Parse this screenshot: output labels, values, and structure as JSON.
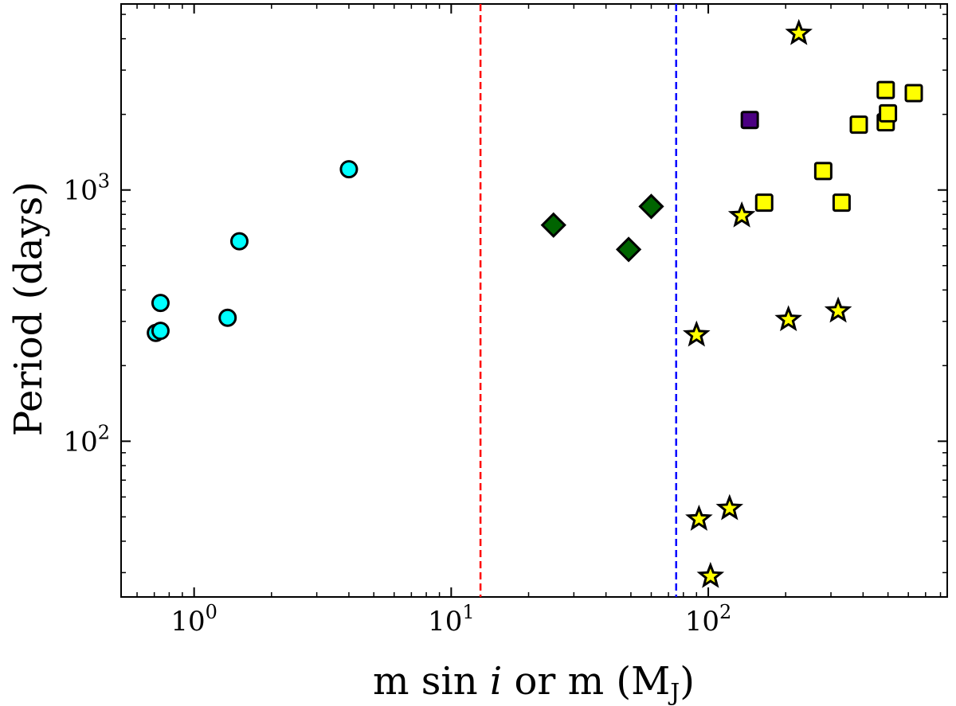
{
  "chart_data": {
    "type": "scatter",
    "title": "",
    "xlabel": {
      "pre": "m sin ",
      "italic": "i",
      "post": " or m  (M",
      "sub": "J",
      "close": ")"
    },
    "ylabel": "Period (days)",
    "xscale": "log",
    "yscale": "log",
    "xlim": [
      0.52,
      850
    ],
    "ylim": [
      24,
      5500
    ],
    "x_ticks": [
      {
        "value": 1,
        "base": "10",
        "exp": "0"
      },
      {
        "value": 10,
        "base": "10",
        "exp": "1"
      },
      {
        "value": 100,
        "base": "10",
        "exp": "2"
      }
    ],
    "y_ticks": [
      {
        "value": 100,
        "base": "10",
        "exp": "2"
      },
      {
        "value": 1000,
        "base": "10",
        "exp": "3"
      }
    ],
    "vlines": [
      {
        "name": "red-dashed-line",
        "x": 13,
        "color": "#ff0000"
      },
      {
        "name": "blue-dashed-line",
        "x": 75,
        "color": "#0000ff"
      }
    ],
    "series": [
      {
        "name": "cyan-circles",
        "marker": "circle",
        "color": "#00ffff",
        "points": [
          {
            "x": 0.71,
            "y": 270
          },
          {
            "x": 0.74,
            "y": 275
          },
          {
            "x": 0.74,
            "y": 355
          },
          {
            "x": 1.35,
            "y": 310
          },
          {
            "x": 1.5,
            "y": 625
          },
          {
            "x": 4.0,
            "y": 1210
          }
        ]
      },
      {
        "name": "green-diamonds",
        "marker": "diamond",
        "color": "#006400",
        "points": [
          {
            "x": 25,
            "y": 725
          },
          {
            "x": 49,
            "y": 580
          },
          {
            "x": 60,
            "y": 860
          }
        ]
      },
      {
        "name": "purple-square",
        "marker": "square",
        "color": "#4b0082",
        "points": [
          {
            "x": 145,
            "y": 1900
          }
        ]
      },
      {
        "name": "yellow-squares",
        "marker": "square",
        "color": "#ffff00",
        "points": [
          {
            "x": 165,
            "y": 890
          },
          {
            "x": 280,
            "y": 1190
          },
          {
            "x": 330,
            "y": 890
          },
          {
            "x": 385,
            "y": 1820
          },
          {
            "x": 490,
            "y": 1860
          },
          {
            "x": 500,
            "y": 2020
          },
          {
            "x": 490,
            "y": 2500
          },
          {
            "x": 630,
            "y": 2430
          }
        ]
      },
      {
        "name": "yellow-stars",
        "marker": "star",
        "color": "#ffff00",
        "points": [
          {
            "x": 225,
            "y": 4200
          },
          {
            "x": 135,
            "y": 790
          },
          {
            "x": 90,
            "y": 265
          },
          {
            "x": 205,
            "y": 305
          },
          {
            "x": 320,
            "y": 330
          },
          {
            "x": 121,
            "y": 54
          },
          {
            "x": 92,
            "y": 49
          },
          {
            "x": 102,
            "y": 29
          }
        ]
      }
    ]
  }
}
